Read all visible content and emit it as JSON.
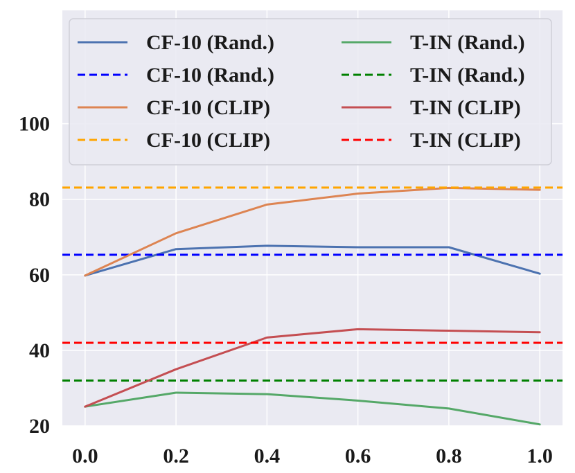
{
  "chart_data": {
    "type": "line",
    "title": "",
    "xlabel": "",
    "ylabel": "",
    "xlim": [
      -0.05,
      1.05
    ],
    "ylim": [
      20,
      130
    ],
    "x_ticks": [
      0.0,
      0.2,
      0.4,
      0.6,
      0.8,
      1.0
    ],
    "x_tick_labels": [
      "0.0",
      "0.2",
      "0.4",
      "0.6",
      "0.8",
      "1.0"
    ],
    "y_ticks": [
      20,
      40,
      60,
      80,
      100
    ],
    "y_tick_labels": [
      "20",
      "40",
      "60",
      "80",
      "100"
    ],
    "grid": true,
    "legend_position": "top",
    "legend_columns": 2,
    "x": [
      0.0,
      0.2,
      0.4,
      0.6,
      0.8,
      1.0
    ],
    "series": [
      {
        "name": "CF-10 (Rand.)",
        "style": "solid",
        "color": "#4c72b0",
        "values": [
          59.8,
          66.8,
          67.7,
          67.3,
          67.3,
          60.3
        ]
      },
      {
        "name": "CF-10 (Rand.)",
        "style": "dashed",
        "color": "#0000ff",
        "values": [
          65.3,
          65.3,
          65.3,
          65.3,
          65.3,
          65.3
        ]
      },
      {
        "name": "CF-10 (CLIP)",
        "style": "solid",
        "color": "#dd8452",
        "values": [
          59.8,
          71.0,
          78.6,
          81.5,
          83.0,
          82.5
        ]
      },
      {
        "name": "CF-10 (CLIP)",
        "style": "dashed",
        "color": "#ffa500",
        "values": [
          83.1,
          83.1,
          83.1,
          83.1,
          83.1,
          83.1
        ]
      },
      {
        "name": "T-IN (Rand.)",
        "style": "solid",
        "color": "#55a868",
        "values": [
          25.1,
          28.8,
          28.4,
          26.7,
          24.6,
          20.4
        ]
      },
      {
        "name": "T-IN (Rand.)",
        "style": "dashed",
        "color": "#008000",
        "values": [
          32.0,
          32.0,
          32.0,
          32.0,
          32.0,
          32.0
        ]
      },
      {
        "name": "T-IN (CLIP)",
        "style": "solid",
        "color": "#c44e52",
        "values": [
          25.1,
          35.0,
          43.4,
          45.6,
          45.2,
          44.8
        ]
      },
      {
        "name": "T-IN (CLIP)",
        "style": "dashed",
        "color": "#ff0000",
        "values": [
          42.0,
          42.0,
          42.0,
          42.0,
          42.0,
          42.0
        ]
      }
    ]
  }
}
